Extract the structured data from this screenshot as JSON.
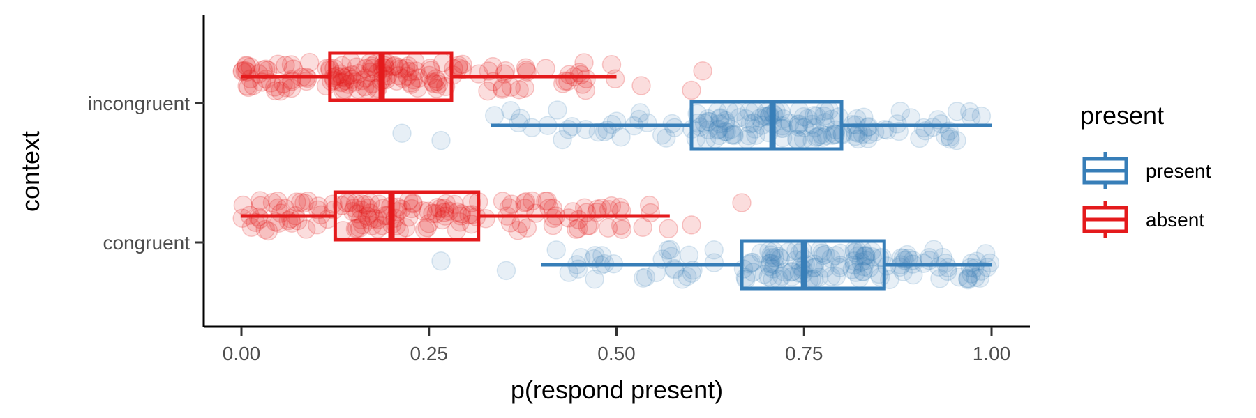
{
  "chart_data": {
    "type": "boxplot",
    "orientation": "horizontal",
    "xlabel": "p(respond present)",
    "ylabel": "context",
    "xlim": [
      0,
      1
    ],
    "x_ticks": [
      0,
      0.25,
      0.5,
      0.75,
      1
    ],
    "x_tick_labels": [
      "0.00",
      "0.25",
      "0.50",
      "0.75",
      "1.00"
    ],
    "categories": [
      "incongruent",
      "congruent"
    ],
    "legend": {
      "title": "present",
      "position": "right",
      "entries": [
        {
          "name": "present",
          "color": "#377EB8"
        },
        {
          "name": "absent",
          "color": "#E41A1C"
        }
      ]
    },
    "series": [
      {
        "name": "present",
        "color": "#377EB8",
        "boxes": [
          {
            "category": "incongruent",
            "whisker_low": 0.333,
            "q1": 0.6,
            "median": 0.708,
            "q3": 0.8,
            "whisker_high": 1.0,
            "outliers": [
              0.214,
              0.266
            ]
          },
          {
            "category": "congruent",
            "whisker_low": 0.4,
            "q1": 0.667,
            "median": 0.75,
            "q3": 0.857,
            "whisker_high": 1.0,
            "outliers": [
              0.266,
              0.353
            ]
          }
        ]
      },
      {
        "name": "absent",
        "color": "#E41A1C",
        "boxes": [
          {
            "category": "incongruent",
            "whisker_low": 0.0,
            "q1": 0.118,
            "median": 0.187,
            "q3": 0.28,
            "whisker_high": 0.5,
            "outliers": [
              0.533,
              0.6,
              0.615
            ]
          },
          {
            "category": "congruent",
            "whisker_low": 0.0,
            "q1": 0.125,
            "median": 0.2,
            "q3": 0.316,
            "whisker_high": 0.571,
            "outliers": [
              0.6,
              0.667
            ]
          }
        ]
      }
    ],
    "points_jittered": true,
    "point_count_per_group": 150,
    "grid": false
  }
}
